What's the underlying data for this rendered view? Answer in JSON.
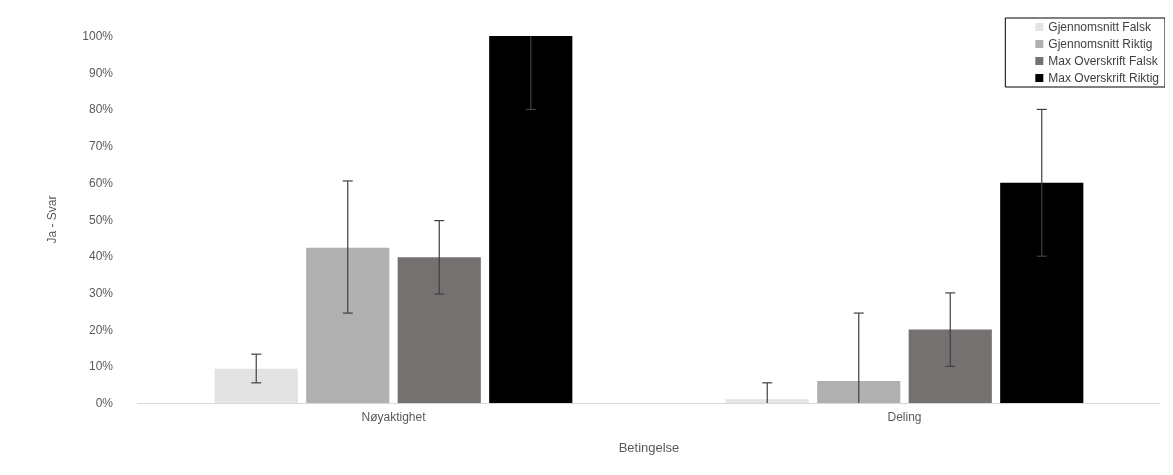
{
  "chart_data": {
    "type": "bar",
    "xlabel": "Betingelse",
    "ylabel": "Ja - Svar",
    "categories": [
      "Nøyaktighet",
      "Deling"
    ],
    "series": [
      {
        "name": "Gjennomsnitt Falsk",
        "color": "#e3e3e3",
        "values": [
          9.3,
          1
        ],
        "errors": [
          [
            5.5,
            13.3
          ],
          [
            0,
            5.5
          ]
        ]
      },
      {
        "name": "Gjennomsnitt Riktig",
        "color": "#b0b0b0",
        "values": [
          42.3,
          6
        ],
        "errors": [
          [
            24.5,
            60.5
          ],
          [
            0,
            24.5
          ]
        ]
      },
      {
        "name": "Max Overskrift Falsk",
        "color": "#767171",
        "values": [
          39.7,
          20
        ],
        "errors": [
          [
            29.7,
            49.7
          ],
          [
            10,
            30
          ]
        ]
      },
      {
        "name": "Max Overskrift Riktig",
        "color": "#000000",
        "values": [
          100,
          60
        ],
        "errors": [
          [
            80,
            100
          ],
          [
            40,
            80
          ]
        ]
      }
    ],
    "ylim": [
      0,
      100
    ],
    "yticks": [
      {
        "value": 0,
        "label": "0%"
      },
      {
        "value": 10,
        "label": "10%"
      },
      {
        "value": 20,
        "label": "20%"
      },
      {
        "value": 30,
        "label": "30%"
      },
      {
        "value": 40,
        "label": "40%"
      },
      {
        "value": 50,
        "label": "50%"
      },
      {
        "value": 60,
        "label": "60%"
      },
      {
        "value": 70,
        "label": "70%"
      },
      {
        "value": 80,
        "label": "80%"
      },
      {
        "value": 90,
        "label": "90%"
      },
      {
        "value": 100,
        "label": "100%"
      }
    ],
    "grid": false,
    "legend": "top right"
  }
}
